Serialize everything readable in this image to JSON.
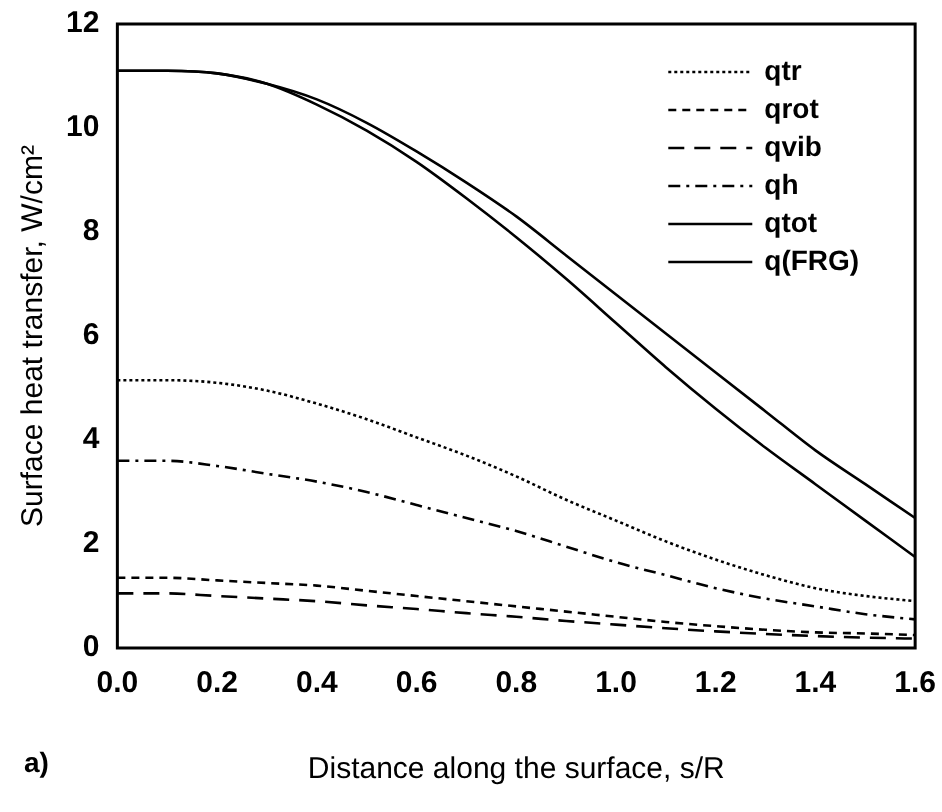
{
  "chart_data": {
    "type": "line",
    "xlabel": "Distance along the surface, s/R",
    "ylabel": "Surface heat transfer, W/cm²",
    "annotations": [
      "a)"
    ],
    "x": [
      0,
      0.1,
      0.2,
      0.3,
      0.4,
      0.5,
      0.6,
      0.7,
      0.8,
      0.9,
      1.0,
      1.1,
      1.2,
      1.3,
      1.4,
      1.5,
      1.6
    ],
    "xlim": [
      0,
      1.6
    ],
    "xticks": [
      {
        "value": 0,
        "label": "0.0"
      },
      0.2,
      0.4,
      0.6,
      0.8,
      {
        "value": 1,
        "label": "1.0"
      },
      1.2,
      1.4,
      1.6
    ],
    "ylim": [
      0,
      12
    ],
    "yticks": [
      0,
      2,
      4,
      6,
      8,
      10,
      12
    ],
    "legend": "top right",
    "marker": "none",
    "series": [
      {
        "name": "qtr",
        "color": "#000000",
        "line_style": "dotted",
        "values": [
          5.15,
          5.15,
          5.1,
          4.95,
          4.7,
          4.4,
          4.05,
          3.7,
          3.3,
          2.85,
          2.45,
          2.05,
          1.7,
          1.4,
          1.15,
          1.0,
          0.9
        ]
      },
      {
        "name": "qrot",
        "color": "#000000",
        "line_style": "dashed",
        "values": [
          1.35,
          1.35,
          1.3,
          1.25,
          1.2,
          1.1,
          1.0,
          0.9,
          0.8,
          0.7,
          0.6,
          0.5,
          0.42,
          0.35,
          0.3,
          0.28,
          0.25
        ]
      },
      {
        "name": "qvib",
        "color": "#000000",
        "line_style": "longdash",
        "values": [
          1.05,
          1.05,
          1.0,
          0.95,
          0.9,
          0.82,
          0.75,
          0.67,
          0.6,
          0.52,
          0.45,
          0.38,
          0.32,
          0.27,
          0.23,
          0.2,
          0.18
        ]
      },
      {
        "name": "qh",
        "color": "#000000",
        "line_style": "dashdot",
        "values": [
          3.6,
          3.6,
          3.5,
          3.35,
          3.2,
          3.0,
          2.75,
          2.5,
          2.25,
          1.95,
          1.65,
          1.4,
          1.15,
          0.95,
          0.8,
          0.65,
          0.55
        ]
      },
      {
        "name": "qtot",
        "color": "#000000",
        "line_style": "solid",
        "values": [
          11.1,
          11.1,
          11.05,
          10.85,
          10.45,
          9.95,
          9.35,
          8.65,
          7.9,
          7.1,
          6.25,
          5.4,
          4.6,
          3.85,
          3.15,
          2.45,
          1.75
        ]
      },
      {
        "name": "q(FRG)",
        "color": "#000000",
        "line_style": "solid",
        "values": [
          11.1,
          11.1,
          11.05,
          10.85,
          10.55,
          10.1,
          9.55,
          8.95,
          8.3,
          7.55,
          6.8,
          6.05,
          5.3,
          4.55,
          3.8,
          3.15,
          2.5
        ]
      }
    ]
  }
}
